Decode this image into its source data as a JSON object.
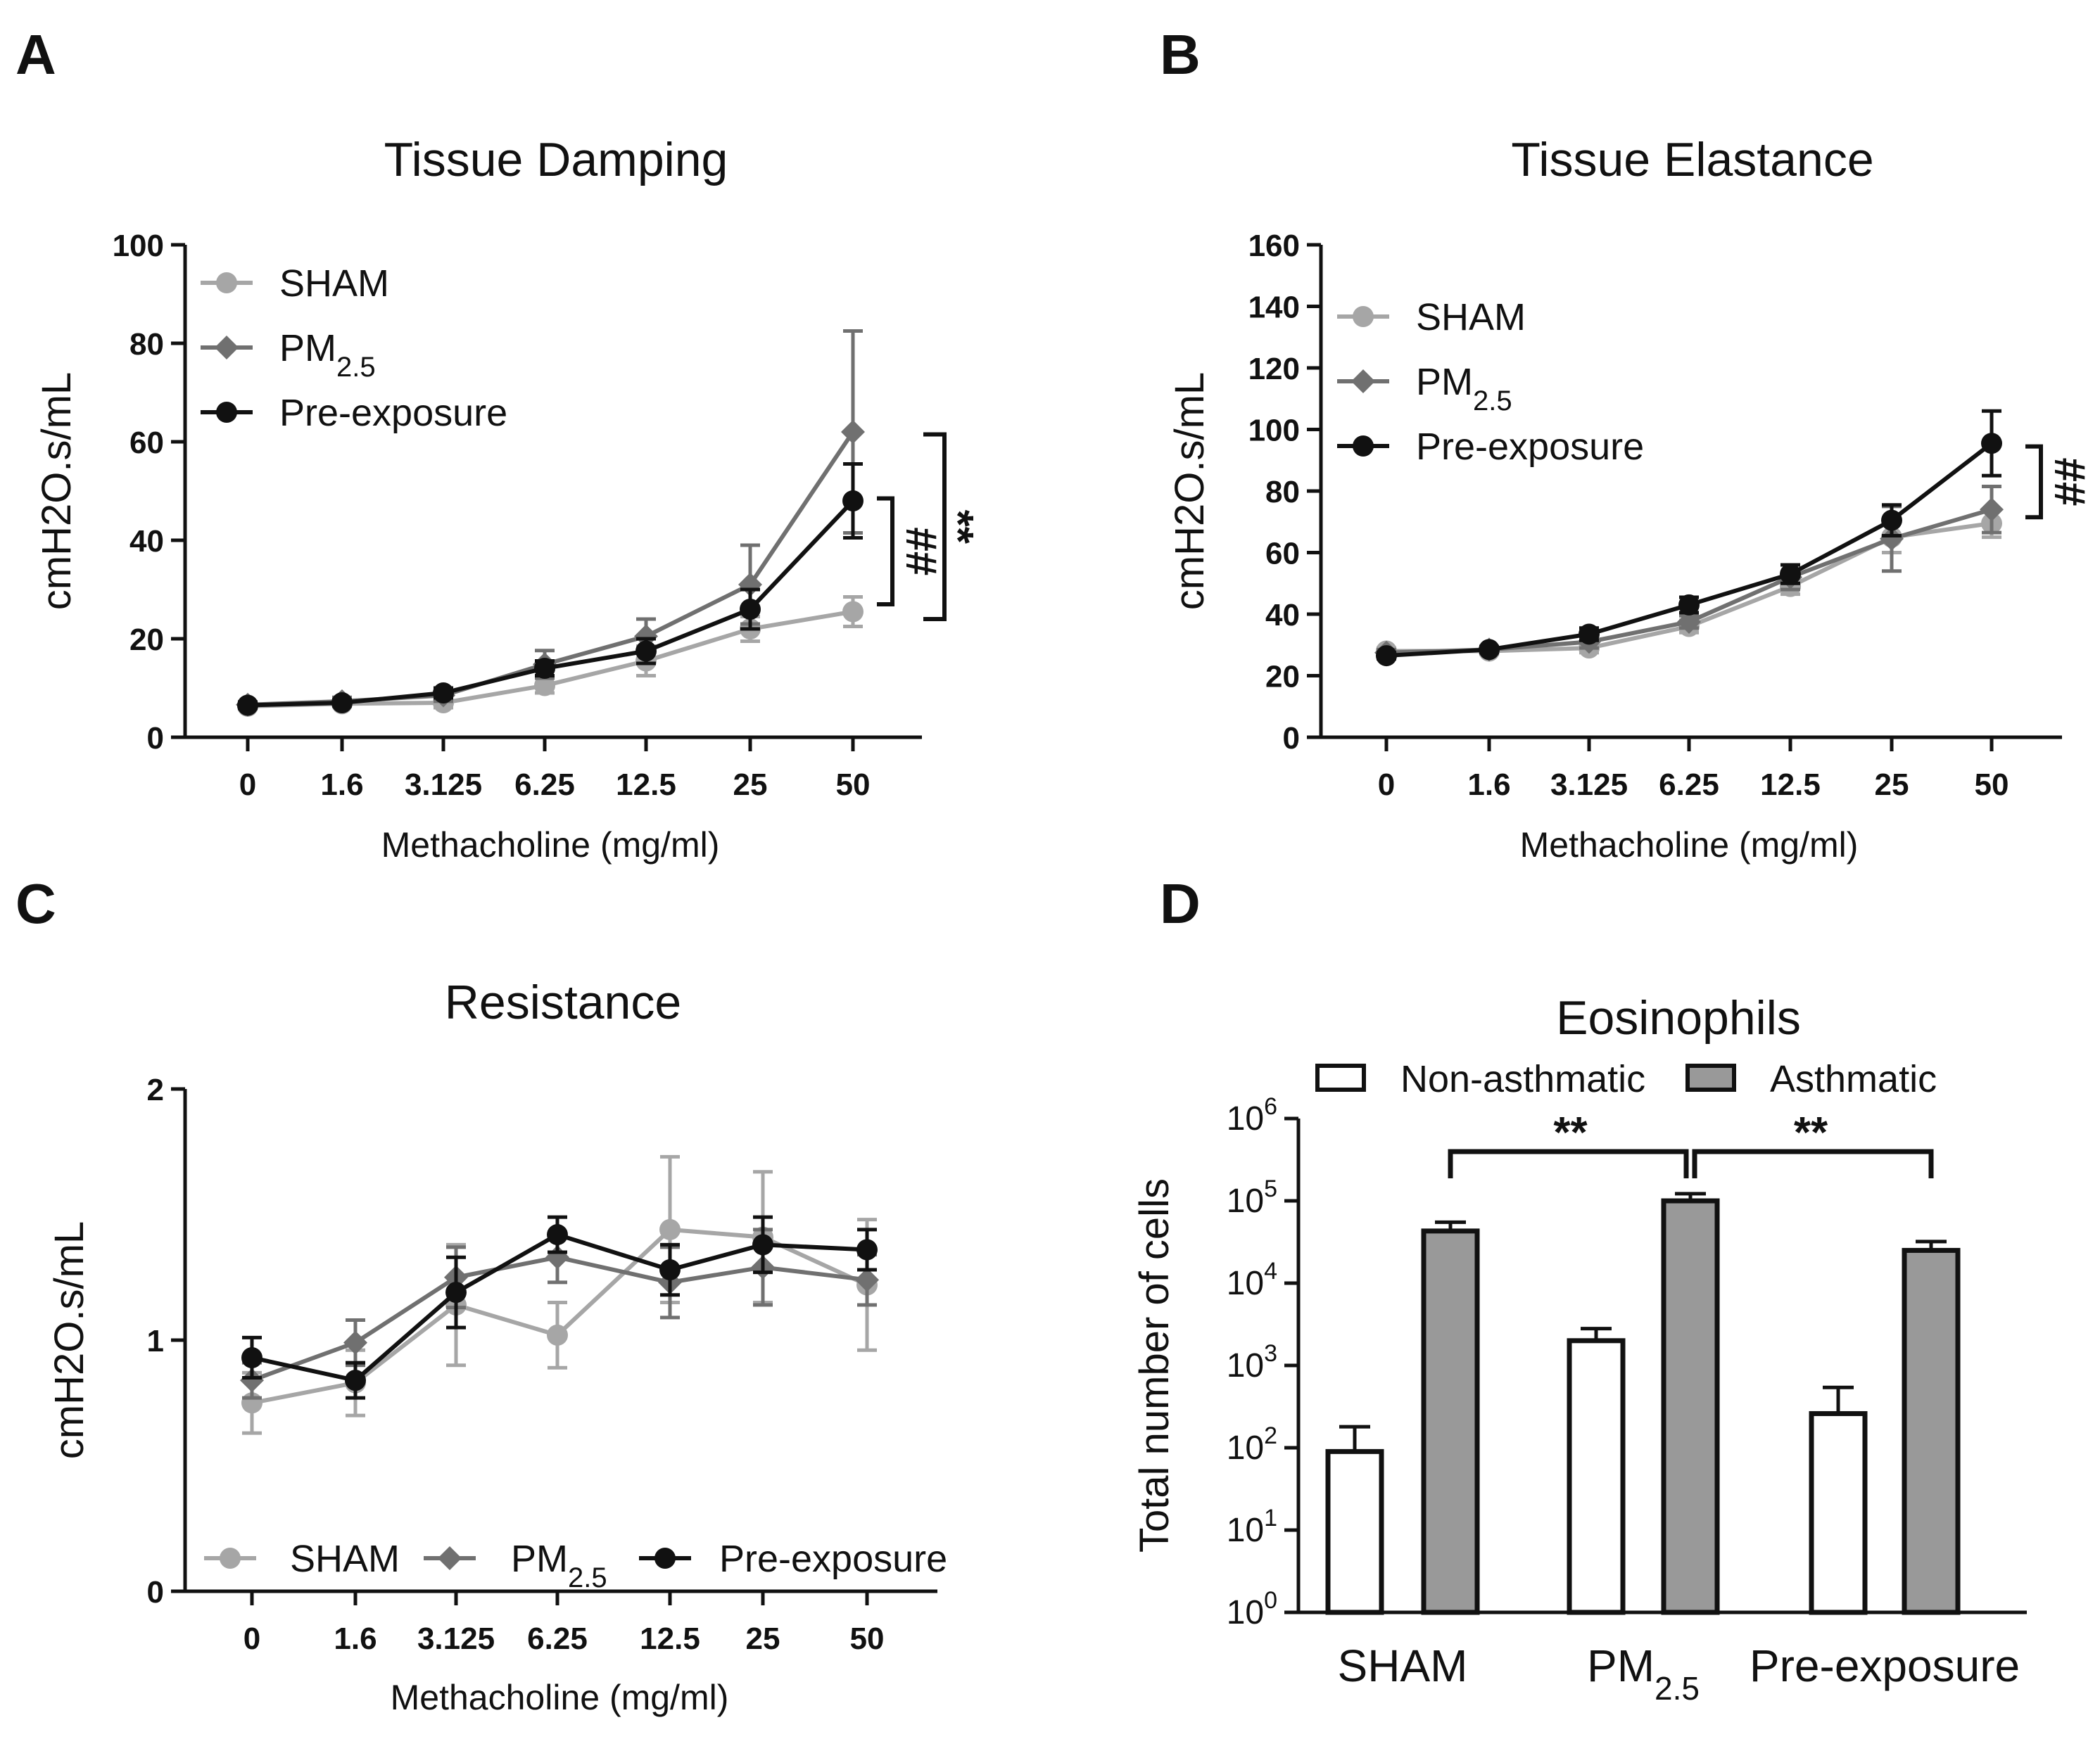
{
  "panels": {
    "A": {
      "letter": "A"
    },
    "B": {
      "letter": "B"
    },
    "C": {
      "letter": "C"
    },
    "D": {
      "letter": "D"
    }
  },
  "colors": {
    "SHAM": "#a6a6a6",
    "PM2.5": "#707070",
    "Pre-exposure": "#111111",
    "asthmatic_bar": "#999999"
  },
  "chart_data": [
    {
      "id": "A",
      "type": "line",
      "title": "Tissue Damping",
      "xlabel": "Methacholine (mg/ml)",
      "ylabel": "cmH2O.s/mL",
      "categories": [
        "0",
        "1.6",
        "3.125",
        "6.25",
        "12.5",
        "25",
        "50"
      ],
      "ylim": [
        0,
        100
      ],
      "yticks": [
        "0",
        "20",
        "40",
        "60",
        "80",
        "100"
      ],
      "legend_position": "top-left",
      "series": [
        {
          "name": "SHAM",
          "marker": "circle",
          "values": [
            6.3,
            6.8,
            7.0,
            10.5,
            15.5,
            22.0,
            25.5
          ],
          "errors": [
            0.6,
            0.6,
            1.0,
            1.5,
            3.0,
            2.5,
            3.0
          ]
        },
        {
          "name": "PM2.5",
          "marker": "diamond",
          "values": [
            6.6,
            7.3,
            8.5,
            14.8,
            20.5,
            31.0,
            62.0
          ],
          "errors": [
            0.6,
            0.8,
            1.2,
            2.8,
            3.5,
            8.0,
            20.5
          ]
        },
        {
          "name": "Pre-exposure",
          "marker": "circle",
          "values": [
            6.5,
            7.0,
            9.0,
            14.0,
            17.5,
            26.0,
            48.0
          ],
          "errors": [
            0.6,
            0.6,
            1.0,
            1.5,
            2.5,
            4.0,
            7.5
          ]
        }
      ],
      "annotations": [
        {
          "text": "##",
          "between": [
            "SHAM",
            "Pre-exposure"
          ],
          "at": "50"
        },
        {
          "text": "**",
          "between": [
            "SHAM",
            "PM2.5"
          ],
          "at": "50"
        }
      ]
    },
    {
      "id": "B",
      "type": "line",
      "title": "Tissue Elastance",
      "xlabel": "Methacholine (mg/ml)",
      "ylabel": "cmH2O.s/mL",
      "categories": [
        "0",
        "1.6",
        "3.125",
        "6.25",
        "12.5",
        "25",
        "50"
      ],
      "ylim": [
        0,
        160
      ],
      "yticks": [
        "0",
        "20",
        "40",
        "60",
        "80",
        "100",
        "120",
        "140",
        "160"
      ],
      "legend_position": "top-left",
      "series": [
        {
          "name": "SHAM",
          "marker": "circle",
          "values": [
            28.0,
            28.0,
            29.0,
            36.0,
            49.0,
            65.0,
            69.5
          ],
          "errors": [
            1.0,
            1.0,
            1.5,
            2.0,
            2.5,
            5.0,
            4.5
          ]
        },
        {
          "name": "PM2.5",
          "marker": "diamond",
          "values": [
            27.5,
            28.5,
            31.0,
            37.5,
            52.0,
            64.5,
            74.0
          ],
          "errors": [
            1.0,
            1.0,
            2.0,
            2.0,
            4.0,
            10.5,
            7.5
          ]
        },
        {
          "name": "Pre-exposure",
          "marker": "circle",
          "values": [
            26.5,
            28.5,
            33.5,
            43.0,
            53.0,
            70.5,
            95.5
          ],
          "errors": [
            1.0,
            1.0,
            2.0,
            2.5,
            3.0,
            5.0,
            10.5
          ]
        }
      ],
      "annotations": [
        {
          "text": "##",
          "between": [
            "SHAM",
            "Pre-exposure"
          ],
          "at": "50"
        }
      ]
    },
    {
      "id": "C",
      "type": "line",
      "title": "Resistance",
      "xlabel": "Methacholine (mg/ml)",
      "ylabel": "cmH2O.s/mL",
      "categories": [
        "0",
        "1.6",
        "3.125",
        "6.25",
        "12.5",
        "25",
        "50"
      ],
      "ylim": [
        0,
        2
      ],
      "yticks": [
        "0",
        "1",
        "2"
      ],
      "legend_position": "bottom",
      "series": [
        {
          "name": "SHAM",
          "marker": "circle",
          "values": [
            0.75,
            0.83,
            1.14,
            1.02,
            1.44,
            1.41,
            1.22
          ],
          "errors": [
            0.12,
            0.13,
            0.24,
            0.13,
            0.29,
            0.26,
            0.26
          ]
        },
        {
          "name": "PM2.5",
          "marker": "diamond",
          "values": [
            0.84,
            0.99,
            1.25,
            1.33,
            1.23,
            1.29,
            1.24
          ],
          "errors": [
            0.07,
            0.09,
            0.12,
            0.1,
            0.14,
            0.15,
            0.1
          ]
        },
        {
          "name": "Pre-exposure",
          "marker": "circle",
          "values": [
            0.93,
            0.84,
            1.19,
            1.42,
            1.28,
            1.38,
            1.36
          ],
          "errors": [
            0.08,
            0.07,
            0.14,
            0.07,
            0.1,
            0.11,
            0.08
          ]
        }
      ]
    },
    {
      "id": "D",
      "type": "bar",
      "title": "Eosinophils",
      "ylabel": "Total number of cells",
      "yscale": "log",
      "ylim_exponent": [
        0,
        6
      ],
      "ytick_base": "10",
      "ytick_exponents": [
        "0",
        "1",
        "2",
        "3",
        "4",
        "5",
        "6"
      ],
      "categories": [
        "SHAM",
        "PM",
        "Pre-exposure"
      ],
      "category_subscripts": [
        "",
        "2.5",
        ""
      ],
      "legend_position": "top",
      "series": [
        {
          "name": "Non-asthmatic",
          "values": [
            90,
            2000,
            260
          ],
          "error_tops": [
            180,
            2800,
            540
          ]
        },
        {
          "name": "Asthmatic",
          "values": [
            43000,
            100000,
            25000
          ],
          "error_tops": [
            55000,
            122000,
            32000
          ]
        }
      ],
      "annotations": [
        {
          "text": "**",
          "from": "SHAM",
          "to": "PM2.5",
          "series": "Asthmatic"
        },
        {
          "text": "**",
          "from": "PM2.5",
          "to": "Pre-exposure",
          "series": "Asthmatic"
        }
      ]
    }
  ]
}
